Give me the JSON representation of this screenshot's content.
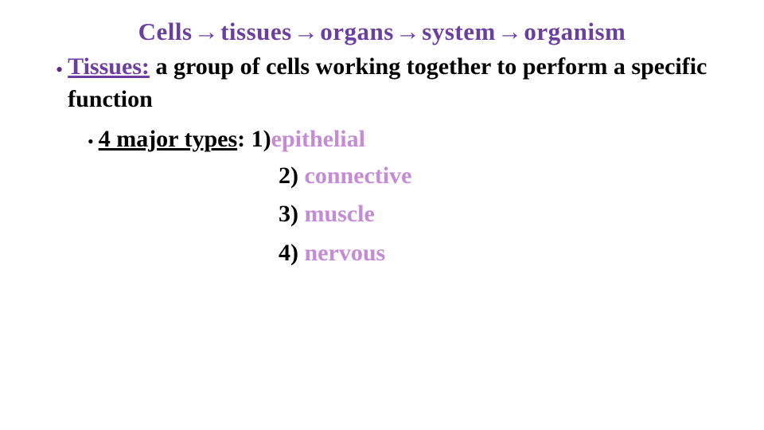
{
  "colors": {
    "purple": "#6b3fa0",
    "light_purple": "#c58bd6",
    "black": "#000000",
    "background": "#ffffff"
  },
  "typography": {
    "family": "Garamond-serif",
    "title_size_pt": 23,
    "body_size_pt": 22,
    "weight": "bold"
  },
  "title": {
    "w1": "Cells",
    "w2": "tissues",
    "w3": "organs",
    "w4": "system",
    "w5": "organism"
  },
  "bullet1": {
    "term": "Tissues:",
    "definition": "  a group of cells working together to perform a specific function"
  },
  "bullet2": {
    "label": "4 major types",
    "colon": ":  ",
    "n1": "1)",
    "t1": "epithelial",
    "n2": "2) ",
    "t2": "connective",
    "n3": "3) ",
    "t3": "muscle",
    "n4": "4) ",
    "t4": "nervous"
  }
}
